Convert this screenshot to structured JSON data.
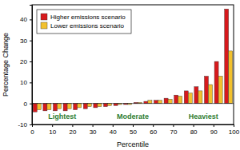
{
  "chart_data": {
    "type": "bar",
    "x_label": "Percentile",
    "y_label": "Percentage Change",
    "x": [
      2.5,
      7.5,
      12.5,
      17.5,
      22.5,
      27.5,
      32.5,
      37.5,
      42.5,
      47.5,
      52.5,
      57.5,
      62.5,
      67.5,
      72.5,
      77.5,
      82.5,
      87.5,
      92.5,
      97.5
    ],
    "series": [
      {
        "name": "Higher emissions scenario",
        "color": "#d7191c",
        "values": [
          -4,
          -3.5,
          -3.5,
          -3.5,
          -3,
          -2.5,
          -2,
          -1.5,
          -1,
          -0.5,
          0.5,
          1,
          1.5,
          2.5,
          4,
          6,
          8,
          13,
          20,
          45
        ]
      },
      {
        "name": "Lower emissions scenario",
        "color": "#f2c12e",
        "values": [
          -3,
          -3,
          -2.5,
          -2.5,
          -2,
          -1.5,
          -1.5,
          -1,
          -0.5,
          -0.5,
          0.5,
          1.5,
          1.5,
          2,
          3.5,
          5,
          6,
          9,
          13,
          25
        ]
      }
    ],
    "xlim": [
      0,
      100
    ],
    "xticks": [
      0,
      10,
      20,
      30,
      40,
      50,
      60,
      70,
      80,
      90,
      100
    ],
    "ylim": [
      -10,
      47
    ],
    "yticks": [
      -10,
      0,
      10,
      20,
      30,
      40
    ],
    "legend": "upper left",
    "annotations": [
      {
        "text": "Lightest",
        "x": 15,
        "y": -6,
        "color": "#2e7d32"
      },
      {
        "text": "Moderate",
        "x": 50,
        "y": -6,
        "color": "#2e7d32"
      },
      {
        "text": "Heaviest",
        "x": 85,
        "y": -6,
        "color": "#2e7d32"
      }
    ]
  }
}
